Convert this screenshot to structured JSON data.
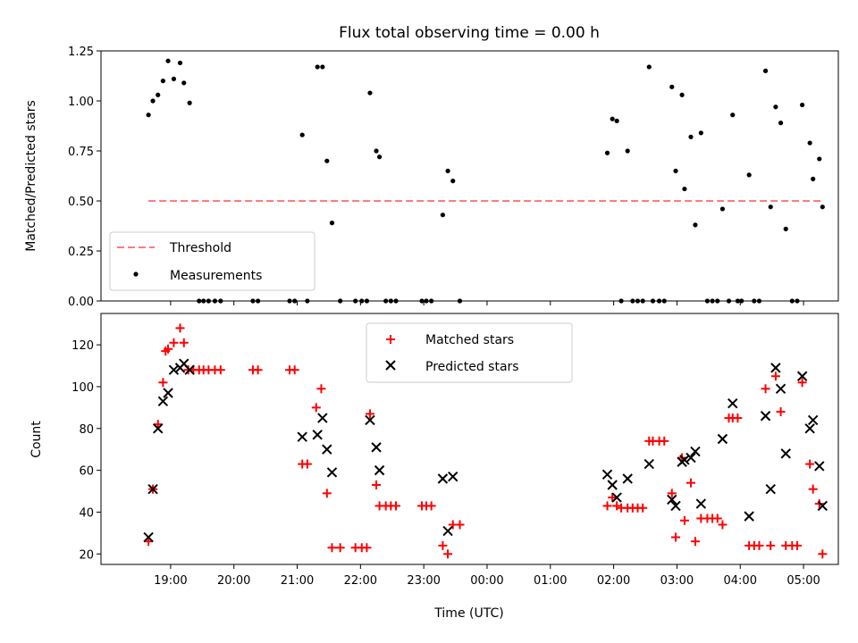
{
  "chart_data": [
    {
      "type": "scatter",
      "title": "Flux total observing time = 0.00 h",
      "xlabel": "",
      "ylabel": "Matched/Predicted stars",
      "ylim": [
        0,
        1.25
      ],
      "yticks": [
        0.0,
        0.25,
        0.5,
        0.75,
        1.0,
        1.25
      ],
      "ytick_labels": [
        "0.00",
        "0.25",
        "0.50",
        "0.75",
        "1.00",
        "1.25"
      ],
      "xlim_hours": [
        17.9,
        29.55
      ],
      "legend": {
        "position": "lower-left",
        "entries": [
          "Threshold",
          "Measurements"
        ]
      },
      "threshold": {
        "name": "Threshold",
        "value": 0.5,
        "x_range": [
          18.65,
          29.3
        ],
        "color": "#ff7b7b",
        "style": "dashed"
      },
      "series": [
        {
          "name": "Measurements",
          "color": "#000000",
          "marker": "dot",
          "points": [
            [
              18.65,
              0.93
            ],
            [
              18.72,
              1.0
            ],
            [
              18.8,
              1.03
            ],
            [
              18.88,
              1.1
            ],
            [
              18.96,
              1.2
            ],
            [
              19.05,
              1.11
            ],
            [
              19.15,
              1.19
            ],
            [
              19.21,
              1.09
            ],
            [
              19.3,
              0.99
            ],
            [
              19.45,
              0.0
            ],
            [
              19.52,
              0.0
            ],
            [
              19.6,
              0.0
            ],
            [
              19.7,
              0.0
            ],
            [
              19.79,
              0.0
            ],
            [
              20.3,
              0.0
            ],
            [
              20.38,
              0.0
            ],
            [
              20.88,
              0.0
            ],
            [
              20.96,
              0.0
            ],
            [
              21.08,
              0.83
            ],
            [
              21.16,
              0.0
            ],
            [
              21.32,
              1.17
            ],
            [
              21.4,
              1.17
            ],
            [
              21.47,
              0.7
            ],
            [
              21.55,
              0.39
            ],
            [
              21.68,
              0.0
            ],
            [
              21.92,
              0.0
            ],
            [
              22.02,
              0.0
            ],
            [
              22.1,
              0.0
            ],
            [
              22.15,
              1.04
            ],
            [
              22.25,
              0.75
            ],
            [
              22.3,
              0.72
            ],
            [
              22.4,
              0.0
            ],
            [
              22.48,
              0.0
            ],
            [
              22.56,
              0.0
            ],
            [
              22.97,
              0.0
            ],
            [
              23.04,
              0.0
            ],
            [
              23.12,
              0.0
            ],
            [
              23.3,
              0.43
            ],
            [
              23.38,
              0.65
            ],
            [
              23.46,
              0.6
            ],
            [
              23.57,
              0.0
            ],
            [
              25.9,
              0.74
            ],
            [
              25.98,
              0.91
            ],
            [
              26.05,
              0.9
            ],
            [
              26.12,
              0.0
            ],
            [
              26.22,
              0.75
            ],
            [
              26.3,
              0.0
            ],
            [
              26.38,
              0.0
            ],
            [
              26.46,
              0.0
            ],
            [
              26.56,
              1.17
            ],
            [
              26.62,
              0.0
            ],
            [
              26.72,
              0.0
            ],
            [
              26.8,
              0.0
            ],
            [
              26.92,
              1.07
            ],
            [
              26.98,
              0.65
            ],
            [
              27.08,
              1.03
            ],
            [
              27.12,
              0.56
            ],
            [
              27.22,
              0.82
            ],
            [
              27.29,
              0.38
            ],
            [
              27.38,
              0.84
            ],
            [
              27.48,
              0.0
            ],
            [
              27.56,
              0.0
            ],
            [
              27.64,
              0.0
            ],
            [
              27.72,
              0.46
            ],
            [
              27.82,
              0.0
            ],
            [
              27.88,
              0.93
            ],
            [
              27.96,
              0.0
            ],
            [
              28.02,
              0.0
            ],
            [
              28.14,
              0.63
            ],
            [
              28.22,
              0.0
            ],
            [
              28.3,
              0.0
            ],
            [
              28.4,
              1.15
            ],
            [
              28.48,
              0.47
            ],
            [
              28.56,
              0.97
            ],
            [
              28.64,
              0.89
            ],
            [
              28.72,
              0.36
            ],
            [
              28.82,
              0.0
            ],
            [
              28.9,
              0.0
            ],
            [
              28.98,
              0.98
            ],
            [
              29.1,
              0.79
            ],
            [
              29.15,
              0.61
            ],
            [
              29.25,
              0.71
            ],
            [
              29.3,
              0.47
            ]
          ]
        }
      ]
    },
    {
      "type": "scatter",
      "title": "",
      "xlabel": "Time (UTC)",
      "ylabel": "Count",
      "ylim": [
        15,
        135
      ],
      "yticks": [
        20,
        40,
        60,
        80,
        100,
        120
      ],
      "ytick_labels": [
        "20",
        "40",
        "60",
        "80",
        "100",
        "120"
      ],
      "xlim_hours": [
        17.9,
        29.55
      ],
      "xticks_hours": [
        19,
        20,
        21,
        22,
        23,
        24,
        25,
        26,
        27,
        28,
        29
      ],
      "xtick_labels": [
        "19:00",
        "20:00",
        "21:00",
        "22:00",
        "23:00",
        "00:00",
        "01:00",
        "02:00",
        "03:00",
        "04:00",
        "05:00"
      ],
      "legend": {
        "position": "upper-center",
        "entries": [
          "Matched stars",
          "Predicted stars"
        ]
      },
      "series": [
        {
          "name": "Matched stars",
          "color": "#ff0000",
          "marker": "plus",
          "points": [
            [
              18.65,
              26
            ],
            [
              18.72,
              51
            ],
            [
              18.8,
              82
            ],
            [
              18.88,
              102
            ],
            [
              18.92,
              117
            ],
            [
              18.96,
              118
            ],
            [
              19.05,
              121
            ],
            [
              19.15,
              128
            ],
            [
              19.21,
              121
            ],
            [
              19.28,
              108
            ],
            [
              19.36,
              108
            ],
            [
              19.45,
              108
            ],
            [
              19.52,
              108
            ],
            [
              19.6,
              108
            ],
            [
              19.7,
              108
            ],
            [
              19.79,
              108
            ],
            [
              20.3,
              108
            ],
            [
              20.38,
              108
            ],
            [
              20.88,
              108
            ],
            [
              20.96,
              108
            ],
            [
              21.08,
              63
            ],
            [
              21.16,
              63
            ],
            [
              21.3,
              90
            ],
            [
              21.38,
              99
            ],
            [
              21.47,
              49
            ],
            [
              21.55,
              23
            ],
            [
              21.68,
              23
            ],
            [
              21.92,
              23
            ],
            [
              22.02,
              23
            ],
            [
              22.1,
              23
            ],
            [
              22.15,
              87
            ],
            [
              22.25,
              53
            ],
            [
              22.3,
              43
            ],
            [
              22.4,
              43
            ],
            [
              22.48,
              43
            ],
            [
              22.56,
              43
            ],
            [
              22.97,
              43
            ],
            [
              23.04,
              43
            ],
            [
              23.12,
              43
            ],
            [
              23.3,
              24
            ],
            [
              23.38,
              20
            ],
            [
              23.46,
              34
            ],
            [
              23.57,
              34
            ],
            [
              25.9,
              43
            ],
            [
              25.98,
              47
            ],
            [
              26.05,
              43
            ],
            [
              26.12,
              42
            ],
            [
              26.22,
              42
            ],
            [
              26.3,
              42
            ],
            [
              26.38,
              42
            ],
            [
              26.46,
              42
            ],
            [
              26.56,
              74
            ],
            [
              26.62,
              74
            ],
            [
              26.72,
              74
            ],
            [
              26.8,
              74
            ],
            [
              26.92,
              49
            ],
            [
              26.98,
              28
            ],
            [
              27.08,
              66
            ],
            [
              27.12,
              36
            ],
            [
              27.22,
              54
            ],
            [
              27.29,
              26
            ],
            [
              27.38,
              37
            ],
            [
              27.48,
              37
            ],
            [
              27.56,
              37
            ],
            [
              27.64,
              37
            ],
            [
              27.72,
              34
            ],
            [
              27.82,
              85
            ],
            [
              27.88,
              85
            ],
            [
              27.96,
              85
            ],
            [
              28.14,
              24
            ],
            [
              28.22,
              24
            ],
            [
              28.3,
              24
            ],
            [
              28.4,
              99
            ],
            [
              28.48,
              24
            ],
            [
              28.56,
              105
            ],
            [
              28.64,
              88
            ],
            [
              28.72,
              24
            ],
            [
              28.82,
              24
            ],
            [
              28.9,
              24
            ],
            [
              28.98,
              102
            ],
            [
              29.1,
              63
            ],
            [
              29.15,
              51
            ],
            [
              29.25,
              44
            ],
            [
              29.3,
              20
            ]
          ]
        },
        {
          "name": "Predicted stars",
          "color": "#000000",
          "marker": "x",
          "points": [
            [
              18.65,
              28
            ],
            [
              18.72,
              51
            ],
            [
              18.8,
              80
            ],
            [
              18.88,
              93
            ],
            [
              18.96,
              97
            ],
            [
              19.05,
              108
            ],
            [
              19.15,
              109
            ],
            [
              19.21,
              111
            ],
            [
              19.3,
              108
            ],
            [
              21.08,
              76
            ],
            [
              21.32,
              77
            ],
            [
              21.4,
              85
            ],
            [
              21.47,
              70
            ],
            [
              21.55,
              59
            ],
            [
              22.15,
              84
            ],
            [
              22.25,
              71
            ],
            [
              22.3,
              60
            ],
            [
              23.3,
              56
            ],
            [
              23.38,
              31
            ],
            [
              23.46,
              57
            ],
            [
              25.9,
              58
            ],
            [
              25.98,
              53
            ],
            [
              26.05,
              47
            ],
            [
              26.22,
              56
            ],
            [
              26.56,
              63
            ],
            [
              26.92,
              46
            ],
            [
              26.98,
              43
            ],
            [
              27.08,
              64
            ],
            [
              27.12,
              65
            ],
            [
              27.22,
              66
            ],
            [
              27.29,
              69
            ],
            [
              27.38,
              44
            ],
            [
              27.72,
              75
            ],
            [
              27.88,
              92
            ],
            [
              28.14,
              38
            ],
            [
              28.4,
              86
            ],
            [
              28.48,
              51
            ],
            [
              28.56,
              109
            ],
            [
              28.64,
              99
            ],
            [
              28.72,
              68
            ],
            [
              28.98,
              105
            ],
            [
              29.1,
              80
            ],
            [
              29.15,
              84
            ],
            [
              29.25,
              62
            ],
            [
              29.3,
              43
            ]
          ]
        }
      ]
    }
  ]
}
